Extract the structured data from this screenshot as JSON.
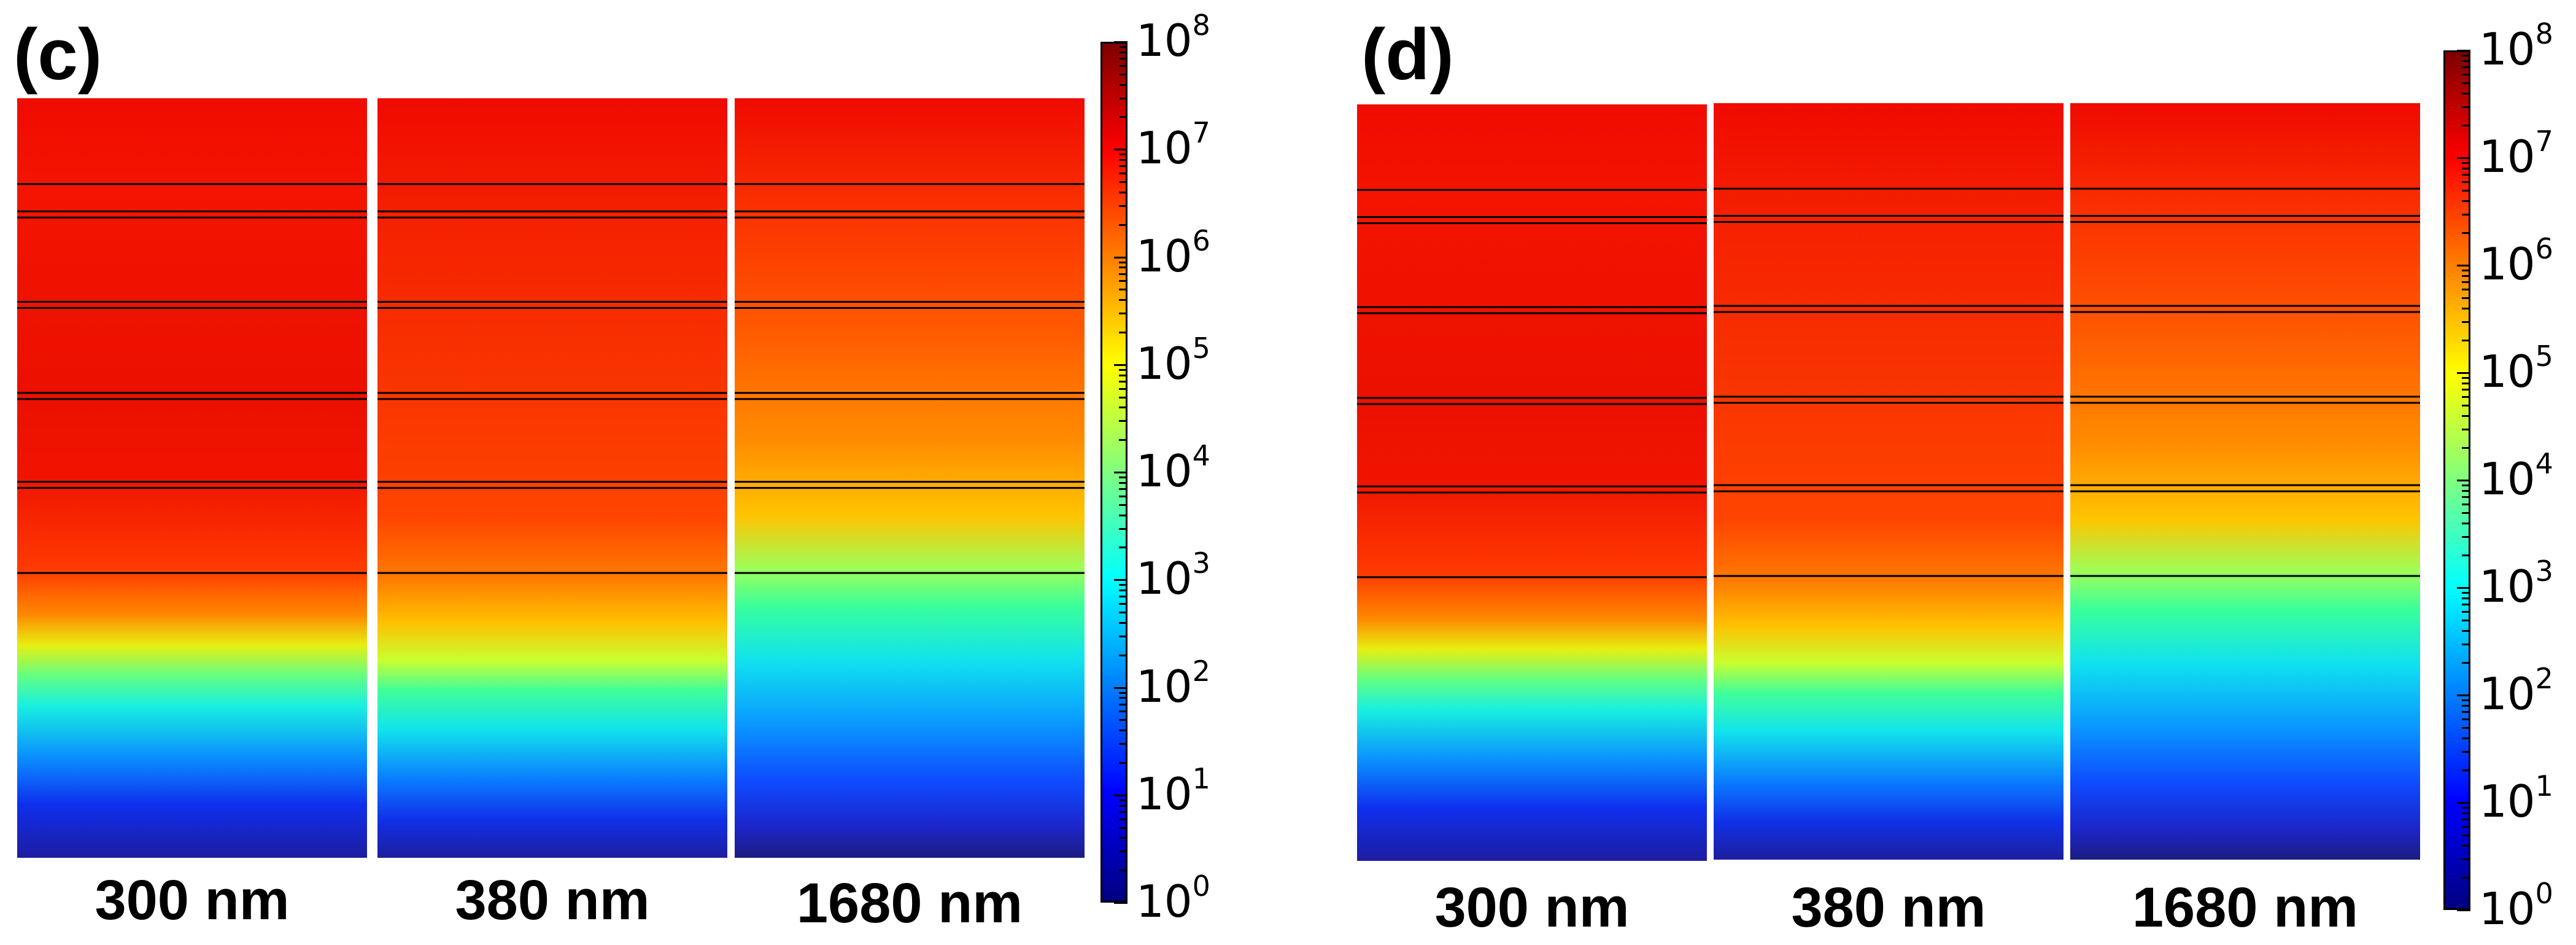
{
  "chart_data": [
    {
      "type": "heatmap",
      "panel_label": "(c)",
      "strips": [
        {
          "label": "300 nm",
          "wavelength_nm": 300
        },
        {
          "label": "380 nm",
          "wavelength_nm": 380
        },
        {
          "label": "1680 nm",
          "wavelength_nm": 1680
        }
      ],
      "colorbar": {
        "scale": "log",
        "range": [
          1,
          100000000
        ],
        "ticks": [
          {
            "base": "10",
            "exp": "0"
          },
          {
            "base": "10",
            "exp": "1"
          },
          {
            "base": "10",
            "exp": "2"
          },
          {
            "base": "10",
            "exp": "3"
          },
          {
            "base": "10",
            "exp": "4"
          },
          {
            "base": "10",
            "exp": "5"
          },
          {
            "base": "10",
            "exp": "6"
          },
          {
            "base": "10",
            "exp": "7"
          },
          {
            "base": "10",
            "exp": "8"
          }
        ]
      }
    },
    {
      "type": "heatmap",
      "panel_label": "(d)",
      "strips": [
        {
          "label": "300 nm",
          "wavelength_nm": 300
        },
        {
          "label": "380 nm",
          "wavelength_nm": 380
        },
        {
          "label": "1680 nm",
          "wavelength_nm": 1680
        }
      ],
      "colorbar": {
        "scale": "log",
        "range": [
          1,
          100000000
        ],
        "ticks": [
          {
            "base": "10",
            "exp": "0"
          },
          {
            "base": "10",
            "exp": "1"
          },
          {
            "base": "10",
            "exp": "2"
          },
          {
            "base": "10",
            "exp": "3"
          },
          {
            "base": "10",
            "exp": "4"
          },
          {
            "base": "10",
            "exp": "5"
          },
          {
            "base": "10",
            "exp": "6"
          },
          {
            "base": "10",
            "exp": "7"
          },
          {
            "base": "10",
            "exp": "8"
          }
        ]
      }
    }
  ],
  "colors": {
    "jet": [
      "#00007f",
      "#0000ff",
      "#007fff",
      "#00ffff",
      "#7fff7f",
      "#ffff00",
      "#ff7f00",
      "#ff0000",
      "#7f0000"
    ],
    "layer_line": "#000000",
    "separator": "#ffffff"
  }
}
